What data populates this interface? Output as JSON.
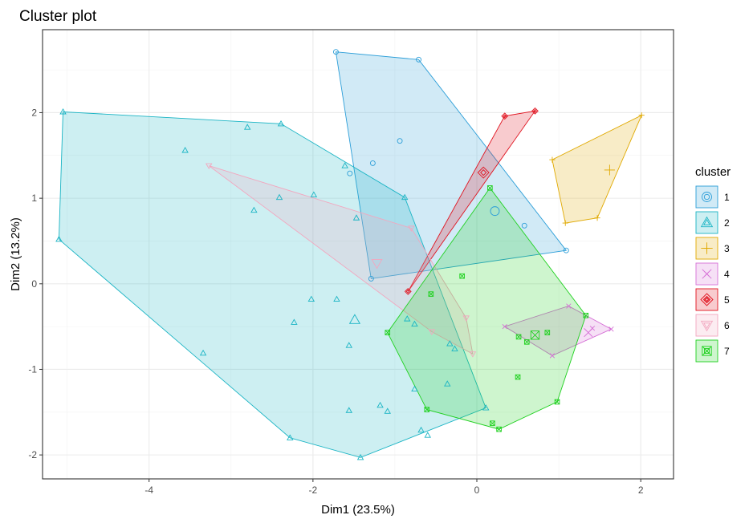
{
  "chart_data": {
    "type": "scatter",
    "title": "Cluster plot",
    "xlabel": "Dim1 (23.5%)",
    "ylabel": "Dim2 (13.2%)",
    "xlim": [
      -5.3,
      2.4
    ],
    "ylim": [
      -2.28,
      2.97
    ],
    "xticks": [
      -4,
      -2,
      0,
      2
    ],
    "yticks": [
      -2,
      -1,
      0,
      1,
      2
    ],
    "grid": true,
    "legend_title": "cluster",
    "legend_position": "right",
    "series": [
      {
        "name": "1",
        "color": "#2C9ED8",
        "marker": "circle",
        "centroid": [
          0.22,
          0.85
        ],
        "points": [
          [
            -1.72,
            2.71
          ],
          [
            -0.71,
            2.62
          ],
          [
            -0.94,
            1.67
          ],
          [
            -1.27,
            1.41
          ],
          [
            -1.55,
            1.29
          ],
          [
            -1.29,
            0.06
          ],
          [
            0.58,
            0.68
          ],
          [
            1.09,
            0.39
          ]
        ],
        "hull": [
          [
            -1.72,
            2.71
          ],
          [
            -0.71,
            2.62
          ],
          [
            1.09,
            0.39
          ],
          [
            -1.29,
            0.06
          ]
        ]
      },
      {
        "name": "2",
        "color": "#1AB4C4",
        "marker": "triangle",
        "centroid": [
          -1.49,
          -0.42
        ],
        "points": [
          [
            -5.05,
            2.01
          ],
          [
            -2.39,
            1.87
          ],
          [
            -2.8,
            1.83
          ],
          [
            -3.56,
            1.56
          ],
          [
            -1.61,
            1.38
          ],
          [
            -1.99,
            1.04
          ],
          [
            -2.41,
            1.01
          ],
          [
            -0.88,
            1.01
          ],
          [
            -2.72,
            0.86
          ],
          [
            -1.47,
            0.77
          ],
          [
            -5.1,
            0.52
          ],
          [
            -2.02,
            -0.18
          ],
          [
            -1.71,
            -0.18
          ],
          [
            -2.23,
            -0.45
          ],
          [
            -0.85,
            -0.41
          ],
          [
            -0.76,
            -0.47
          ],
          [
            -1.56,
            -0.72
          ],
          [
            -0.33,
            -0.7
          ],
          [
            -0.27,
            -0.76
          ],
          [
            -3.34,
            -0.81
          ],
          [
            -0.36,
            -1.17
          ],
          [
            -0.76,
            -1.23
          ],
          [
            -1.18,
            -1.42
          ],
          [
            -1.09,
            -1.49
          ],
          [
            -1.56,
            -1.48
          ],
          [
            -0.68,
            -1.71
          ],
          [
            -0.6,
            -1.77
          ],
          [
            -2.28,
            -1.8
          ],
          [
            -1.42,
            -2.03
          ],
          [
            0.11,
            -1.45
          ]
        ],
        "hull": [
          [
            -5.05,
            2.01
          ],
          [
            -2.39,
            1.87
          ],
          [
            -0.88,
            1.01
          ],
          [
            0.11,
            -1.45
          ],
          [
            -1.42,
            -2.03
          ],
          [
            -2.28,
            -1.8
          ],
          [
            -5.1,
            0.52
          ]
        ]
      },
      {
        "name": "3",
        "color": "#E0A900",
        "marker": "plus",
        "centroid": [
          1.62,
          1.33
        ],
        "points": [
          [
            2.01,
            1.97
          ],
          [
            0.92,
            1.45
          ],
          [
            1.47,
            0.77
          ],
          [
            1.08,
            0.71
          ]
        ],
        "hull": [
          [
            2.01,
            1.97
          ],
          [
            1.47,
            0.77
          ],
          [
            1.08,
            0.71
          ],
          [
            0.92,
            1.45
          ]
        ]
      },
      {
        "name": "4",
        "color": "#D670D6",
        "marker": "cross",
        "centroid": [
          1.36,
          -0.57
        ],
        "points": [
          [
            0.34,
            -0.5
          ],
          [
            0.92,
            -0.84
          ],
          [
            1.12,
            -0.26
          ],
          [
            1.41,
            -0.52
          ],
          [
            1.64,
            -0.53
          ]
        ],
        "hull": [
          [
            0.34,
            -0.5
          ],
          [
            1.12,
            -0.26
          ],
          [
            1.64,
            -0.53
          ],
          [
            0.92,
            -0.84
          ]
        ]
      },
      {
        "name": "5",
        "color": "#E0131F",
        "marker": "diamond",
        "centroid": [
          0.08,
          1.3
        ],
        "points": [
          [
            0.71,
            2.02
          ],
          [
            0.34,
            1.96
          ],
          [
            -0.84,
            -0.09
          ]
        ],
        "hull": [
          [
            0.71,
            2.02
          ],
          [
            0.34,
            1.96
          ],
          [
            -0.84,
            -0.09
          ]
        ]
      },
      {
        "name": "6",
        "color": "#F2A7BF",
        "marker": "triangle-down",
        "centroid": [
          -1.22,
          0.24
        ],
        "points": [
          [
            -3.27,
            1.38
          ],
          [
            -0.8,
            0.65
          ],
          [
            -0.55,
            -0.56
          ],
          [
            -0.13,
            -0.4
          ],
          [
            -0.05,
            -0.82
          ]
        ],
        "hull": [
          [
            -3.27,
            1.38
          ],
          [
            -0.8,
            0.65
          ],
          [
            -0.13,
            -0.4
          ],
          [
            -0.05,
            -0.82
          ],
          [
            -0.55,
            -0.56
          ]
        ]
      },
      {
        "name": "7",
        "color": "#21D121",
        "marker": "square-cross",
        "centroid": [
          0.71,
          -0.6
        ],
        "points": [
          [
            0.16,
            1.12
          ],
          [
            -0.18,
            0.09
          ],
          [
            -0.56,
            -0.12
          ],
          [
            -1.09,
            -0.57
          ],
          [
            0.51,
            -0.62
          ],
          [
            0.61,
            -0.68
          ],
          [
            0.86,
            -0.57
          ],
          [
            1.33,
            -0.37
          ],
          [
            0.5,
            -1.09
          ],
          [
            -0.61,
            -1.47
          ],
          [
            0.98,
            -1.38
          ],
          [
            0.19,
            -1.63
          ],
          [
            0.27,
            -1.7
          ]
        ],
        "hull": [
          [
            0.16,
            1.12
          ],
          [
            1.33,
            -0.37
          ],
          [
            0.98,
            -1.38
          ],
          [
            0.27,
            -1.7
          ],
          [
            -0.61,
            -1.47
          ],
          [
            -1.09,
            -0.57
          ]
        ]
      }
    ]
  }
}
